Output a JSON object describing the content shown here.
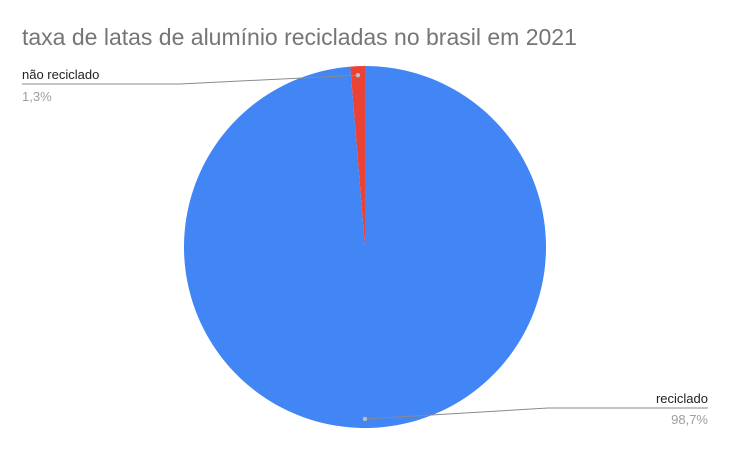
{
  "chart_data": {
    "type": "pie",
    "title": "taxa de latas de alumínio recicladas no brasil em 2021",
    "slices": [
      {
        "label": "não reciclado",
        "value": 1.3,
        "value_label": "1,3%",
        "color": "#ea4335"
      },
      {
        "label": "reciclado",
        "value": 98.7,
        "value_label": "98,7%",
        "color": "#4285f4"
      }
    ],
    "legend": "none"
  }
}
